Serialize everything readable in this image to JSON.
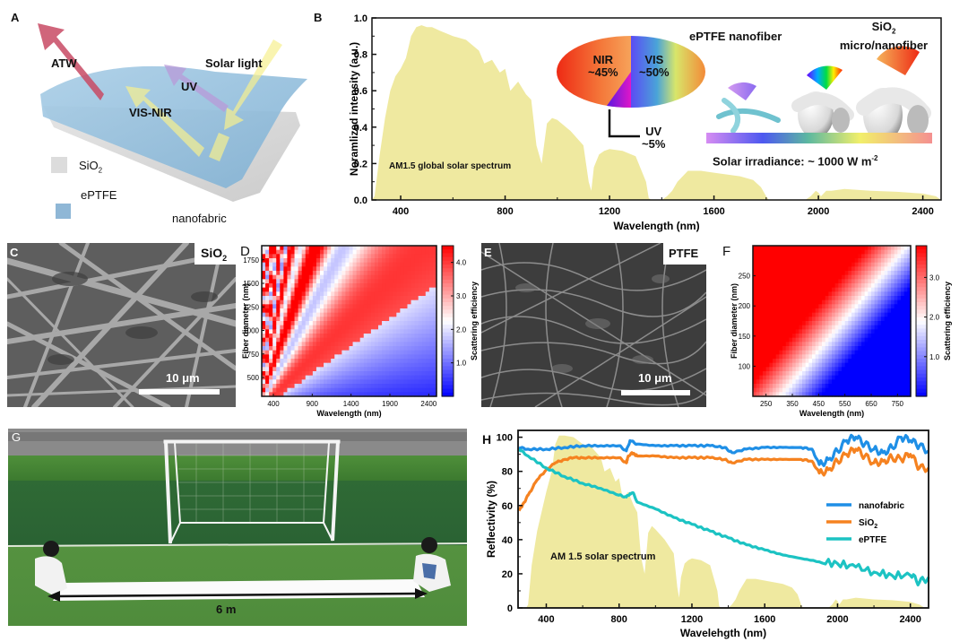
{
  "panels": {
    "A": {
      "label": "A",
      "arrows": {
        "atw": "ATW",
        "solar": "Solar light",
        "uv": "UV",
        "visnir": "VIS-NIR"
      },
      "legend": [
        {
          "name": "SiO2",
          "text": "SiO",
          "sub": "2",
          "color": "#d8d8d8"
        },
        {
          "name": "ePTFE",
          "text": "ePTFE",
          "sub": "",
          "color": "#8fb7d6"
        }
      ],
      "caption": "nanofabric"
    },
    "B": {
      "label": "B",
      "pie": {
        "slices": [
          {
            "name": "NIR",
            "label": "NIR",
            "pct_label": "~45%",
            "value": 45
          },
          {
            "name": "VIS",
            "label": "VIS",
            "pct_label": "~50%",
            "value": 50
          },
          {
            "name": "UV",
            "label": "UV",
            "pct_label": "~5%",
            "value": 5
          }
        ]
      },
      "fiber_labels": {
        "eptfe": "ePTFE nanofiber",
        "sio2_a": "SiO",
        "sio2_sub": "2",
        "sio2_b": "micro/nanofiber"
      },
      "irradiance": {
        "text": "Solar irradiance: ~ 1000 W m",
        "sup": "-2"
      },
      "annotation": "AM1.5 global solar spectrum"
    },
    "C": {
      "label": "C",
      "material": "SiO",
      "material_sub": "2",
      "scalebar": "10 μm"
    },
    "D": {
      "label": "D"
    },
    "E": {
      "label": "E",
      "material": "PTFE",
      "scalebar": "10 μm"
    },
    "F": {
      "label": "F"
    },
    "G": {
      "label": "G",
      "measure": "6 m"
    },
    "H": {
      "label": "H",
      "annotation": "AM 1.5 solar spectrum"
    }
  },
  "chart_data": [
    {
      "id": "B",
      "type": "area",
      "title": "",
      "xlabel": "Wavelength (nm)",
      "ylabel": "Noramlized intensity (a.u.)",
      "xlim": [
        290,
        2470
      ],
      "ylim": [
        0,
        1.0
      ],
      "xticks": [
        400,
        800,
        1200,
        1600,
        2000,
        2400
      ],
      "yticks": [
        "0.0",
        "0.2",
        "0.4",
        "0.6",
        "0.8",
        "1.0"
      ],
      "series": [
        {
          "name": "AM1.5 global solar spectrum",
          "color": "#efe9a0",
          "x": [
            290,
            300,
            320,
            340,
            360,
            380,
            400,
            420,
            440,
            460,
            480,
            500,
            520,
            550,
            600,
            650,
            700,
            720,
            750,
            780,
            800,
            820,
            850,
            880,
            900,
            920,
            940,
            960,
            980,
            1000,
            1050,
            1100,
            1120,
            1130,
            1140,
            1160,
            1180,
            1200,
            1250,
            1300,
            1340,
            1350,
            1360,
            1400,
            1420,
            1440,
            1460,
            1500,
            1550,
            1600,
            1650,
            1700,
            1750,
            1780,
            1800,
            1810,
            1950,
            1970,
            1990,
            2000,
            2010,
            2030,
            2050,
            2100,
            2200,
            2300,
            2400,
            2450,
            2470
          ],
          "y": [
            0,
            0.02,
            0.25,
            0.45,
            0.6,
            0.68,
            0.72,
            0.78,
            0.9,
            0.95,
            0.96,
            0.95,
            0.95,
            0.93,
            0.9,
            0.88,
            0.82,
            0.75,
            0.77,
            0.7,
            0.72,
            0.6,
            0.65,
            0.58,
            0.55,
            0.3,
            0.2,
            0.42,
            0.45,
            0.44,
            0.38,
            0.3,
            0.1,
            0.05,
            0.18,
            0.25,
            0.27,
            0.28,
            0.27,
            0.24,
            0.1,
            0.01,
            0,
            0,
            0.02,
            0.05,
            0.1,
            0.16,
            0.16,
            0.15,
            0.14,
            0.13,
            0.11,
            0.07,
            0.02,
            0,
            0,
            0.02,
            0.05,
            0.04,
            0.02,
            0.05,
            0.05,
            0.06,
            0.05,
            0.045,
            0.035,
            0.02,
            0
          ]
        }
      ]
    },
    {
      "id": "D",
      "type": "heatmap",
      "xlabel": "Wavelength (nm)",
      "ylabel": "Fiber diameter (nm)",
      "colorbar_label": "Scattering efficiency",
      "xlim": [
        250,
        2500
      ],
      "ylim": [
        300,
        1900
      ],
      "xticks": [
        400,
        900,
        1400,
        1900,
        2400
      ],
      "yticks": [
        500,
        750,
        1000,
        1250,
        1500,
        1750
      ],
      "colorbar_ticks": [
        "1.0",
        "2.0",
        "3.0",
        "4.0"
      ],
      "colorbar_range": [
        0,
        4.5
      ],
      "colormap": [
        "#0000ff",
        "#ffffff",
        "#ff0000"
      ]
    },
    {
      "id": "F",
      "type": "heatmap",
      "xlabel": "Wavelength (nm)",
      "ylabel": "Fiber diameter (nm)",
      "colorbar_label": "Scattering efficiency",
      "xlim": [
        200,
        800
      ],
      "ylim": [
        50,
        300
      ],
      "xticks": [
        250,
        350,
        450,
        550,
        650,
        750
      ],
      "yticks": [
        100,
        150,
        200,
        250
      ],
      "colorbar_ticks": [
        "1.0",
        "2.0",
        "3.0"
      ],
      "colorbar_range": [
        0,
        3.8
      ],
      "colormap": [
        "#0000ff",
        "#ffffff",
        "#ff0000"
      ]
    },
    {
      "id": "H",
      "type": "line",
      "xlabel": "Wavelehgth (nm)",
      "ylabel": "Reflectivity (%)",
      "xlim": [
        245,
        2500
      ],
      "ylim": [
        0,
        104
      ],
      "xticks": [
        400,
        800,
        1200,
        1600,
        2000,
        2400
      ],
      "yticks": [
        0,
        20,
        40,
        60,
        80,
        100
      ],
      "legend_position": "center-right",
      "series": [
        {
          "name": "nanofabric",
          "color": "#1f8fe6",
          "x": [
            250,
            300,
            400,
            500,
            600,
            700,
            800,
            840,
            860,
            880,
            900,
            1000,
            1100,
            1200,
            1300,
            1380,
            1420,
            1500,
            1600,
            1700,
            1800,
            1860,
            1900,
            1950,
            2000,
            2050,
            2100,
            2150,
            2200,
            2250,
            2300,
            2350,
            2400,
            2450,
            2500
          ],
          "y": [
            94,
            93,
            93,
            94,
            95,
            95,
            95,
            92,
            98,
            97,
            96,
            95,
            95,
            95,
            95,
            94,
            91,
            93,
            94,
            94,
            94,
            93,
            84,
            87,
            92,
            98,
            100,
            96,
            93,
            91,
            94,
            100,
            98,
            95,
            92
          ]
        },
        {
          "name": "SiO2",
          "color": "#f58220",
          "x": [
            250,
            280,
            300,
            350,
            400,
            450,
            500,
            550,
            600,
            700,
            800,
            840,
            850,
            870,
            900,
            1000,
            1100,
            1200,
            1300,
            1380,
            1420,
            1500,
            1600,
            1700,
            1800,
            1860,
            1900,
            1950,
            2000,
            2050,
            2100,
            2150,
            2200,
            2250,
            2300,
            2350,
            2400,
            2450,
            2500
          ],
          "y": [
            57,
            62,
            66,
            75,
            81,
            85,
            87,
            88,
            88,
            88,
            88,
            85,
            89,
            91,
            89,
            89,
            88,
            88,
            88,
            87,
            85,
            87,
            87,
            87,
            87,
            86,
            79,
            81,
            86,
            90,
            93,
            89,
            85,
            86,
            88,
            87,
            90,
            82,
            82
          ]
        },
        {
          "name": "ePTFE",
          "color": "#1cc3c3",
          "x": [
            250,
            300,
            400,
            500,
            600,
            700,
            800,
            840,
            860,
            880,
            900,
            1000,
            1100,
            1200,
            1300,
            1400,
            1500,
            1600,
            1700,
            1800,
            1900,
            2000,
            2100,
            2200,
            2300,
            2400,
            2450,
            2500
          ],
          "y": [
            93,
            89,
            82,
            77,
            73,
            70,
            66,
            65,
            67,
            67,
            62,
            58,
            53,
            49,
            45,
            41,
            37,
            34,
            31,
            29,
            27,
            26,
            24,
            21,
            19,
            19,
            15,
            18
          ]
        }
      ],
      "background_series": {
        "name": "AM 1.5 solar spectrum",
        "color": "#efe9a0",
        "x": [
          290,
          300,
          320,
          350,
          400,
          430,
          450,
          470,
          500,
          550,
          600,
          650,
          700,
          720,
          750,
          780,
          800,
          820,
          850,
          880,
          900,
          920,
          940,
          960,
          980,
          1000,
          1050,
          1100,
          1120,
          1130,
          1140,
          1160,
          1180,
          1200,
          1250,
          1300,
          1340,
          1350,
          1360,
          1400,
          1420,
          1440,
          1460,
          1500,
          1550,
          1600,
          1650,
          1700,
          1750,
          1780,
          1800,
          1810,
          1950,
          1970,
          1990,
          2000,
          2010,
          2030,
          2050,
          2100,
          2200,
          2300,
          2400,
          2450,
          2480
        ],
        "y": [
          0,
          2,
          25,
          45,
          68,
          80,
          96,
          101,
          101,
          100,
          96,
          94,
          88,
          80,
          82,
          74,
          76,
          64,
          68,
          60,
          56,
          30,
          20,
          44,
          48,
          46,
          40,
          32,
          12,
          6,
          18,
          26,
          28,
          29,
          28,
          25,
          10,
          1,
          0,
          0,
          2,
          5,
          10,
          17,
          17,
          16,
          15,
          14,
          12,
          8,
          2,
          0,
          0,
          2,
          5,
          4,
          2,
          5,
          5,
          6,
          5,
          4.5,
          3.5,
          2,
          0
        ]
      }
    }
  ]
}
